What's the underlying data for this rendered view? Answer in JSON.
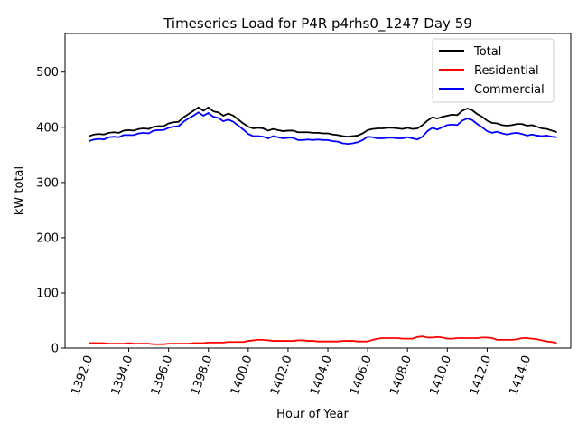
{
  "chart_data": {
    "type": "line",
    "title": "Timeseries Load for P4R p4rhs0_1247  Day 59",
    "xlabel": "Hour of Year",
    "ylabel": "kW total",
    "xlim": [
      1390.8,
      1416.2
    ],
    "ylim": [
      0,
      570
    ],
    "xticks": [
      1392,
      1394,
      1396,
      1398,
      1400,
      1402,
      1404,
      1406,
      1408,
      1410,
      1412,
      1414
    ],
    "xtick_labels": [
      "1392.0",
      "1394.0",
      "1396.0",
      "1398.0",
      "1400.0",
      "1402.0",
      "1404.0",
      "1406.0",
      "1408.0",
      "1410.0",
      "1412.0",
      "1414.0"
    ],
    "yticks": [
      0,
      100,
      200,
      300,
      400,
      500
    ],
    "ytick_labels": [
      "0",
      "100",
      "200",
      "300",
      "400",
      "500"
    ],
    "legend_position": "top-right",
    "grid": false,
    "x": [
      1392.0,
      1392.25,
      1392.5,
      1392.75,
      1393.0,
      1393.25,
      1393.5,
      1393.75,
      1394.0,
      1394.25,
      1394.5,
      1394.75,
      1395.0,
      1395.25,
      1395.5,
      1395.75,
      1396.0,
      1396.25,
      1396.5,
      1396.75,
      1397.0,
      1397.25,
      1397.5,
      1397.75,
      1398.0,
      1398.25,
      1398.5,
      1398.75,
      1399.0,
      1399.25,
      1399.5,
      1399.75,
      1400.0,
      1400.25,
      1400.5,
      1400.75,
      1401.0,
      1401.25,
      1401.5,
      1401.75,
      1402.0,
      1402.25,
      1402.5,
      1402.75,
      1403.0,
      1403.25,
      1403.5,
      1403.75,
      1404.0,
      1404.25,
      1404.5,
      1404.75,
      1405.0,
      1405.25,
      1405.5,
      1405.75,
      1406.0,
      1406.25,
      1406.5,
      1406.75,
      1407.0,
      1407.25,
      1407.5,
      1407.75,
      1408.0,
      1408.25,
      1408.5,
      1408.75,
      1409.0,
      1409.25,
      1409.5,
      1409.75,
      1410.0,
      1410.25,
      1410.5,
      1410.75,
      1411.0,
      1411.25,
      1411.5,
      1411.75,
      1412.0,
      1412.25,
      1412.5,
      1412.75,
      1413.0,
      1413.25,
      1413.5,
      1413.75,
      1414.0,
      1414.25,
      1414.5,
      1414.75,
      1415.0,
      1415.25,
      1415.5
    ],
    "series": [
      {
        "name": "Total",
        "color": "#000000",
        "values": [
          384,
          387,
          388,
          387,
          390,
          391,
          390,
          394,
          395,
          394,
          397,
          398,
          397,
          401,
          402,
          402,
          407,
          409,
          410,
          418,
          424,
          430,
          436,
          430,
          436,
          429,
          427,
          421,
          425,
          421,
          414,
          407,
          401,
          398,
          399,
          398,
          394,
          397,
          395,
          393,
          394,
          394,
          391,
          391,
          391,
          390,
          390,
          389,
          389,
          387,
          386,
          384,
          383,
          384,
          385,
          389,
          395,
          397,
          398,
          398,
          399,
          399,
          398,
          397,
          399,
          397,
          398,
          404,
          412,
          418,
          416,
          419,
          421,
          423,
          422,
          430,
          434,
          431,
          424,
          419,
          412,
          408,
          407,
          404,
          403,
          404,
          406,
          406,
          403,
          404,
          401,
          398,
          397,
          394,
          391
        ]
      },
      {
        "name": "Residential",
        "color": "#ff0000",
        "values": [
          9,
          9,
          9,
          9,
          8,
          8,
          8,
          8,
          9,
          8,
          8,
          8,
          8,
          7,
          7,
          7,
          8,
          8,
          8,
          8,
          8,
          9,
          9,
          9,
          10,
          10,
          10,
          10,
          11,
          11,
          11,
          11,
          13,
          14,
          15,
          15,
          14,
          13,
          13,
          13,
          13,
          13,
          14,
          14,
          13,
          13,
          12,
          12,
          12,
          12,
          12,
          13,
          13,
          13,
          12,
          12,
          12,
          15,
          17,
          18,
          18,
          18,
          18,
          17,
          17,
          17,
          20,
          21,
          19,
          19,
          20,
          19,
          17,
          17,
          18,
          18,
          18,
          18,
          18,
          19,
          19,
          18,
          15,
          15,
          15,
          15,
          16,
          18,
          18,
          17,
          16,
          14,
          12,
          11,
          9
        ]
      },
      {
        "name": "Commercial",
        "color": "#0000ff",
        "values": [
          375,
          378,
          379,
          378,
          382,
          383,
          382,
          386,
          386,
          386,
          389,
          390,
          389,
          394,
          395,
          395,
          399,
          401,
          402,
          410,
          416,
          421,
          427,
          421,
          426,
          419,
          417,
          411,
          414,
          410,
          403,
          396,
          388,
          384,
          384,
          383,
          380,
          384,
          382,
          380,
          381,
          381,
          377,
          377,
          378,
          377,
          378,
          377,
          377,
          375,
          374,
          371,
          370,
          371,
          373,
          377,
          383,
          382,
          380,
          380,
          381,
          381,
          380,
          380,
          382,
          380,
          378,
          383,
          393,
          399,
          396,
          400,
          404,
          405,
          404,
          412,
          416,
          413,
          406,
          400,
          393,
          390,
          392,
          389,
          387,
          389,
          390,
          388,
          385,
          387,
          385,
          384,
          385,
          383,
          382
        ]
      }
    ]
  }
}
